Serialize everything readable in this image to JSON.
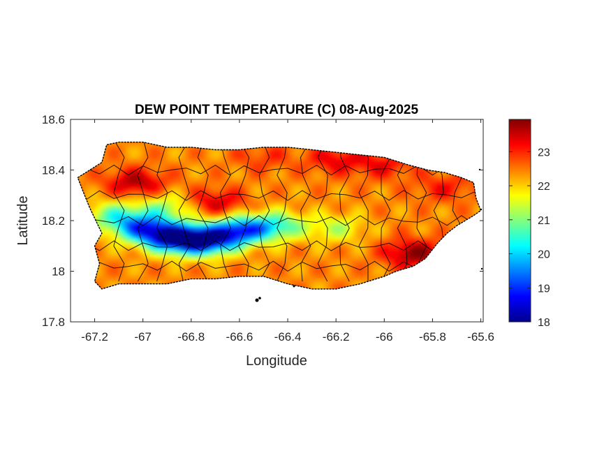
{
  "chart_data": {
    "type": "heatmap",
    "title": "DEW POINT TEMPERATURE (C) 08-Aug-2025",
    "xlabel": "Longitude",
    "ylabel": "Latitude",
    "xlim": [
      -67.3,
      -65.59
    ],
    "ylim": [
      17.8,
      18.6
    ],
    "x_ticks": [
      -67.2,
      -67,
      -66.8,
      -66.6,
      -66.4,
      -66.2,
      -66,
      -65.8,
      -65.6
    ],
    "x_tick_labels": [
      "-67.2",
      "-67",
      "-66.8",
      "-66.6",
      "-66.4",
      "-66.2",
      "-66",
      "-65.8",
      "-65.6"
    ],
    "y_ticks": [
      17.8,
      18,
      18.2,
      18.4,
      18.6
    ],
    "y_tick_labels": [
      "17.8",
      "18",
      "18.2",
      "18.4",
      "18.6"
    ],
    "colorbar": {
      "colormap": "jet",
      "min": 18,
      "max": 23.95,
      "ticks": [
        18,
        19,
        20,
        21,
        22,
        23
      ],
      "tick_labels": [
        "18",
        "19",
        "20",
        "21",
        "22",
        "23"
      ]
    },
    "grid": false,
    "outline": [
      [
        -67.27,
        18.37
      ],
      [
        -67.22,
        18.4
      ],
      [
        -67.17,
        18.43
      ],
      [
        -67.15,
        18.5
      ],
      [
        -67.1,
        18.51
      ],
      [
        -67.0,
        18.51
      ],
      [
        -66.9,
        18.49
      ],
      [
        -66.8,
        18.49
      ],
      [
        -66.7,
        18.48
      ],
      [
        -66.6,
        18.48
      ],
      [
        -66.5,
        18.49
      ],
      [
        -66.4,
        18.49
      ],
      [
        -66.3,
        18.48
      ],
      [
        -66.2,
        18.47
      ],
      [
        -66.1,
        18.46
      ],
      [
        -66.0,
        18.45
      ],
      [
        -65.9,
        18.42
      ],
      [
        -65.82,
        18.4
      ],
      [
        -65.75,
        18.39
      ],
      [
        -65.68,
        18.37
      ],
      [
        -65.63,
        18.35
      ],
      [
        -65.62,
        18.29
      ],
      [
        -65.6,
        18.24
      ],
      [
        -65.63,
        18.22
      ],
      [
        -65.7,
        18.18
      ],
      [
        -65.74,
        18.15
      ],
      [
        -65.78,
        18.11
      ],
      [
        -65.83,
        18.05
      ],
      [
        -65.88,
        18.02
      ],
      [
        -65.95,
        18.0
      ],
      [
        -66.0,
        17.98
      ],
      [
        -66.1,
        17.95
      ],
      [
        -66.2,
        17.93
      ],
      [
        -66.3,
        17.93
      ],
      [
        -66.4,
        17.95
      ],
      [
        -66.5,
        17.98
      ],
      [
        -66.6,
        17.98
      ],
      [
        -66.7,
        17.97
      ],
      [
        -66.8,
        17.97
      ],
      [
        -66.9,
        17.95
      ],
      [
        -67.0,
        17.95
      ],
      [
        -67.1,
        17.95
      ],
      [
        -67.17,
        17.93
      ],
      [
        -67.2,
        17.96
      ],
      [
        -67.18,
        18.03
      ],
      [
        -67.2,
        18.1
      ],
      [
        -67.17,
        18.15
      ],
      [
        -67.22,
        18.25
      ],
      [
        -67.25,
        18.32
      ]
    ],
    "field_base": 22.4,
    "field_anomalies": [
      {
        "lon": -66.87,
        "lat": 18.13,
        "delta": -3.8
      },
      {
        "lon": -66.74,
        "lat": 18.12,
        "delta": -3.6
      },
      {
        "lon": -66.6,
        "lat": 18.16,
        "delta": -3.0
      },
      {
        "lon": -67.0,
        "lat": 18.17,
        "delta": -2.8
      },
      {
        "lon": -66.45,
        "lat": 18.18,
        "delta": -1.8
      },
      {
        "lon": -67.12,
        "lat": 18.22,
        "delta": -1.5
      },
      {
        "lon": -66.9,
        "lat": 18.25,
        "delta": -1.2
      },
      {
        "lon": -66.2,
        "lat": 18.17,
        "delta": -1.0
      },
      {
        "lon": -65.88,
        "lat": 18.07,
        "delta": 1.5
      },
      {
        "lon": -67.03,
        "lat": 18.35,
        "delta": 1.3
      },
      {
        "lon": -66.7,
        "lat": 18.27,
        "delta": 1.1
      },
      {
        "lon": -66.2,
        "lat": 18.44,
        "delta": 0.9
      },
      {
        "lon": -66.0,
        "lat": 18.42,
        "delta": 0.8
      },
      {
        "lon": -65.75,
        "lat": 18.33,
        "delta": 0.7
      },
      {
        "lon": -66.5,
        "lat": 18.45,
        "delta": 0.5
      }
    ]
  }
}
